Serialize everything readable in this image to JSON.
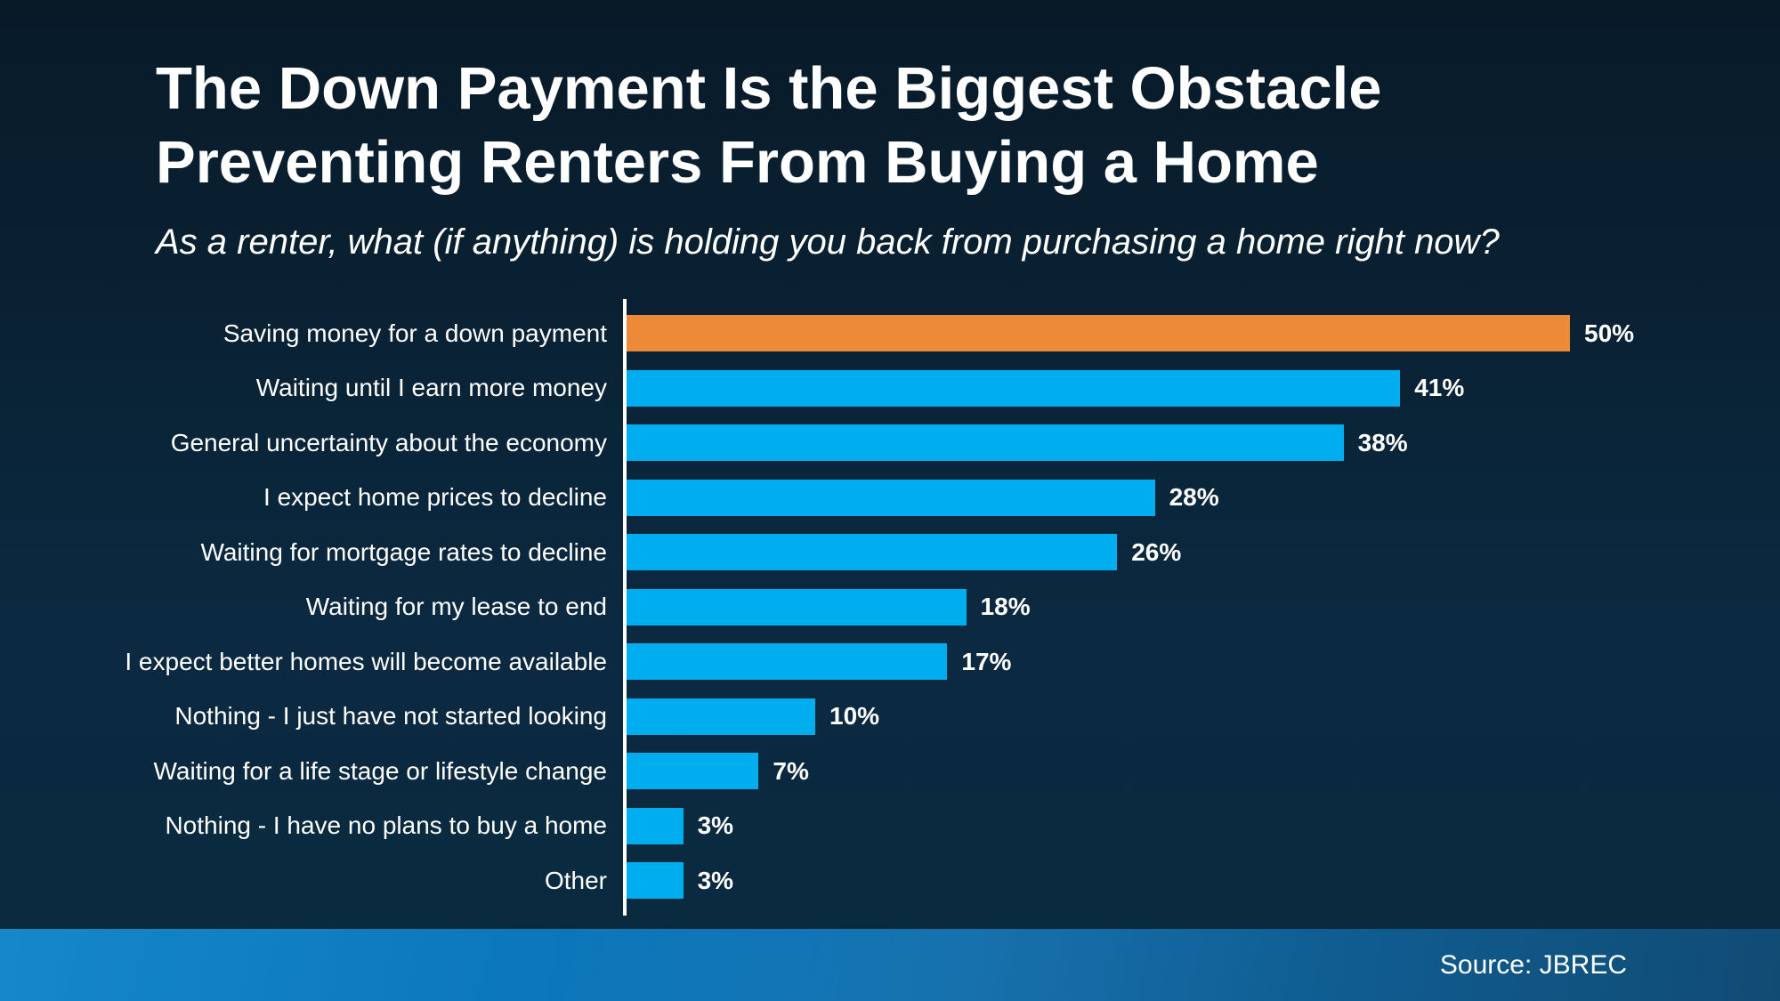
{
  "slide": {
    "title_line1": "The Down Payment Is the Biggest Obstacle",
    "title_line2": "Preventing Renters From Buying a Home",
    "subtitle": "As a renter, what (if anything) is holding you back from purchasing a home right now?",
    "source": "Source: JBREC"
  },
  "colors": {
    "background_top": "#081A28",
    "background_mid": "#0B2940",
    "background_bottom": "#0A2A40",
    "text": "#FFFFFF",
    "bar_default": "#00AEEF",
    "bar_highlight": "#ED8A37",
    "axis_line": "#FFFFFF",
    "footer_gradient_left": "#0981C8",
    "footer_gradient_right": "#114B74"
  },
  "chart_data": {
    "type": "bar",
    "orientation": "horizontal",
    "title": "The Down Payment Is the Biggest Obstacle Preventing Renters From Buying a Home",
    "subtitle": "As a renter, what (if anything) is holding you back from purchasing a home right now?",
    "categories": [
      "Saving money for a down payment",
      "Waiting until I earn more money",
      "General uncertainty about the economy",
      "I expect home prices to decline",
      "Waiting for mortgage rates to decline",
      "Waiting for my lease to end",
      "I expect better homes will become available",
      "Nothing - I just have not started looking",
      "Waiting for a life stage or lifestyle change",
      "Nothing - I have no plans to buy a home",
      "Other"
    ],
    "values": [
      50,
      41,
      38,
      28,
      26,
      18,
      17,
      10,
      7,
      3,
      3
    ],
    "value_labels": [
      "50%",
      "41%",
      "38%",
      "28%",
      "26%",
      "18%",
      "17%",
      "10%",
      "7%",
      "3%",
      "3%"
    ],
    "highlight_index": 0,
    "xlim": [
      0,
      50
    ],
    "value_suffix": "%",
    "grid": false,
    "legend": false
  }
}
